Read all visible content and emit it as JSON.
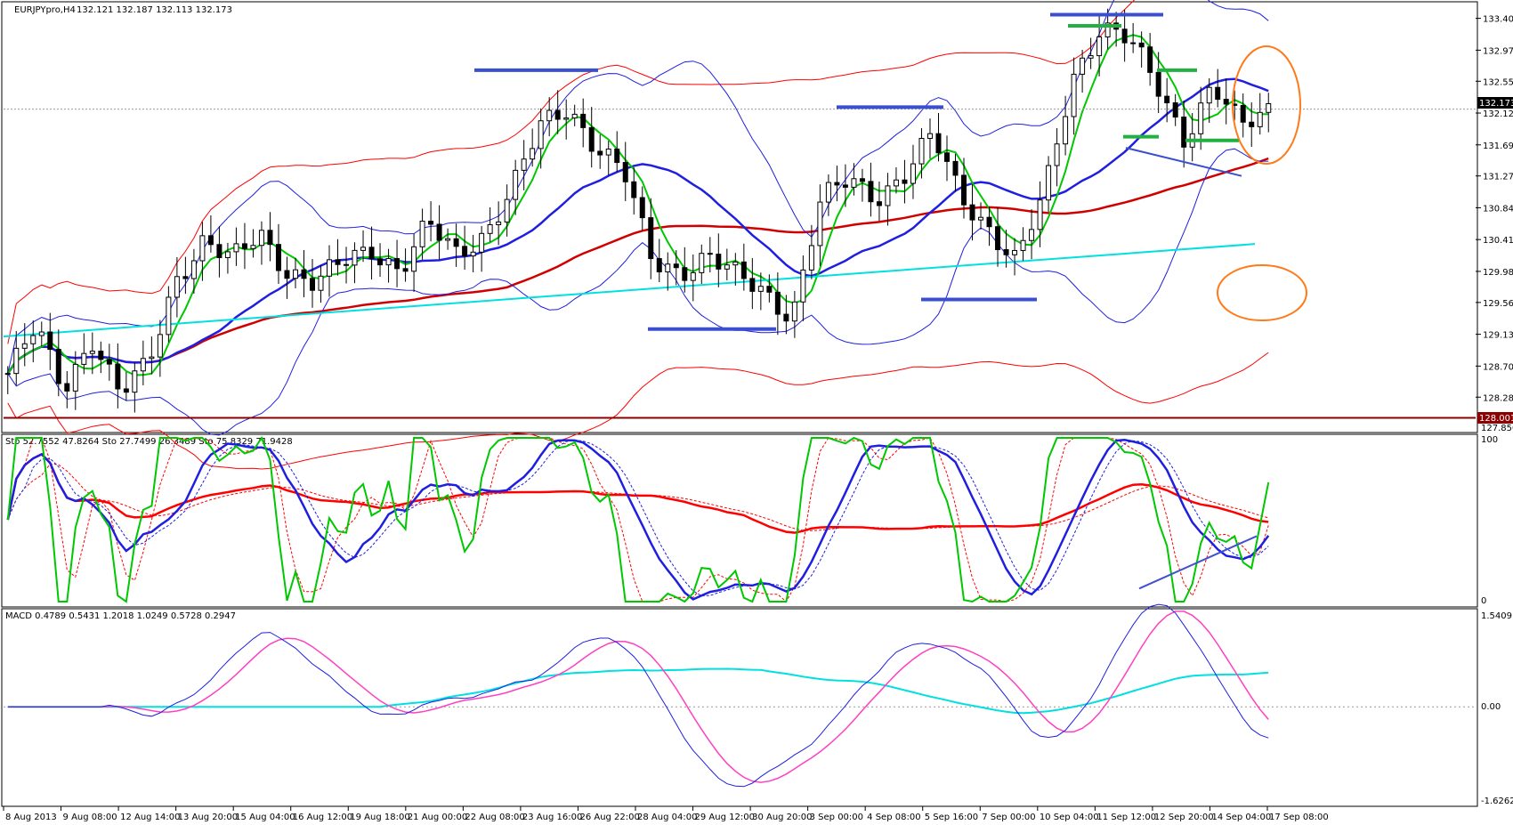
{
  "header": {
    "symbol": "EURJPYpro,H4",
    "ohlc": "132.121 132.187 132.113 132.173"
  },
  "price_panel": {
    "current_price": "132.173",
    "support_level": "128.001",
    "bottom_label": "127.850"
  },
  "stoch_panel": {
    "label": "Sto 52.7552 47.8264   Sto 27.7499 26.3489   Sto 75.8329 71.9428",
    "top": "100",
    "bottom": "0"
  },
  "macd_panel": {
    "label": "MACD 0.4789 0.5431 1.2018 1.0249 0.5728 0.2947",
    "top": "1.5409",
    "mid": "0.00",
    "bottom": "-1.6262"
  },
  "colors": {
    "candle": "#000000",
    "bb_blue": "#1f1fe0",
    "bb_red": "#ff0000",
    "ma_green": "#00c800",
    "cyan": "#00e0e0",
    "orange": "#ff7a1a",
    "annotation_blue": "#3a4fd0",
    "annotation_green": "#22b040",
    "magenta": "#ff40c0"
  },
  "chart_data": {
    "type": "candlestick",
    "symbol": "EURJPYpro",
    "timeframe": "H4",
    "y_ticks": [
      "133.400",
      "132.970",
      "132.550",
      "132.120",
      "131.690",
      "131.270",
      "130.840",
      "130.410",
      "129.980",
      "129.560",
      "129.130",
      "128.700",
      "128.280"
    ],
    "x_ticks": [
      "8 Aug 2013",
      "9 Aug 08:00",
      "12 Aug 14:00",
      "13 Aug 20:00",
      "15 Aug 04:00",
      "16 Aug 12:00",
      "19 Aug 18:00",
      "21 Aug 00:00",
      "22 Aug 08:00",
      "23 Aug 16:00",
      "26 Aug 22:00",
      "28 Aug 04:00",
      "29 Aug 12:00",
      "30 Aug 20:00",
      "3 Sep 00:00",
      "4 Sep 08:00",
      "5 Sep 16:00",
      "7 Sep 00:00",
      "10 Sep 04:00",
      "11 Sep 12:00",
      "12 Sep 20:00",
      "14 Sep 04:00",
      "17 Sep 08:00"
    ],
    "ylim": [
      127.85,
      133.6
    ],
    "close_path": [
      128.6,
      129.2,
      128.4,
      129.1,
      128.3,
      128.7,
      129.9,
      130.4,
      130.1,
      130.5,
      130.0,
      129.8,
      130.1,
      130.3,
      130.0,
      130.6,
      130.2,
      130.5,
      131.1,
      131.9,
      132.2,
      131.7,
      131.3,
      130.1,
      130.0,
      130.2,
      129.9,
      129.7,
      129.4,
      130.9,
      131.2,
      131.0,
      131.3,
      131.8,
      131.0,
      130.6,
      130.1,
      131.0,
      132.6,
      133.3,
      133.1,
      132.5,
      131.8,
      132.5,
      131.9,
      132.17
    ],
    "stoch_ticks": [
      "100",
      "0"
    ],
    "macd_ticks": [
      "1.5409",
      "0.00",
      "-1.6262"
    ]
  }
}
